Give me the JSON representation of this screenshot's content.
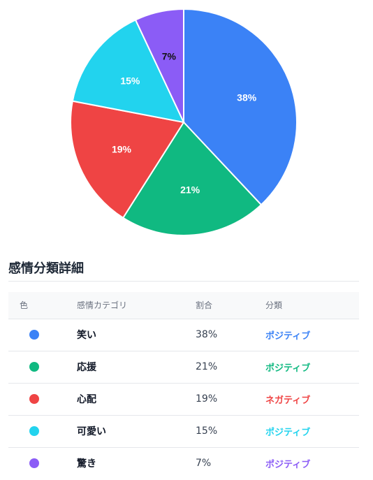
{
  "chart_data": {
    "type": "pie",
    "title": "",
    "slices": [
      {
        "label": "笑い",
        "value": 38,
        "color": "#3b82f6",
        "label_color": "#ffffff"
      },
      {
        "label": "応援",
        "value": 21,
        "color": "#10b981",
        "label_color": "#ffffff"
      },
      {
        "label": "心配",
        "value": 19,
        "color": "#ef4444",
        "label_color": "#ffffff"
      },
      {
        "label": "可愛い",
        "value": 15,
        "color": "#22d3ee",
        "label_color": "#ffffff"
      },
      {
        "label": "驚き",
        "value": 7,
        "color": "#8b5cf6",
        "label_color": "#111111"
      }
    ],
    "value_labels": [
      "38%",
      "21%",
      "19%",
      "15%",
      "7%"
    ],
    "legend": false
  },
  "table": {
    "title": "感情分類詳細",
    "headers": {
      "color": "色",
      "category": "感情カテゴリ",
      "ratio": "割合",
      "class": "分類"
    },
    "rows": [
      {
        "name": "笑い",
        "ratio": "38%",
        "class": "ポジティブ",
        "color": "#3b82f6",
        "class_color": "#3b82f6"
      },
      {
        "name": "応援",
        "ratio": "21%",
        "class": "ポジティブ",
        "color": "#10b981",
        "class_color": "#10b981"
      },
      {
        "name": "心配",
        "ratio": "19%",
        "class": "ネガティブ",
        "color": "#ef4444",
        "class_color": "#ef4444"
      },
      {
        "name": "可愛い",
        "ratio": "15%",
        "class": "ポジティブ",
        "color": "#22d3ee",
        "class_color": "#22d3ee"
      },
      {
        "name": "驚き",
        "ratio": "7%",
        "class": "ポジティブ",
        "color": "#8b5cf6",
        "class_color": "#8b5cf6"
      }
    ]
  }
}
